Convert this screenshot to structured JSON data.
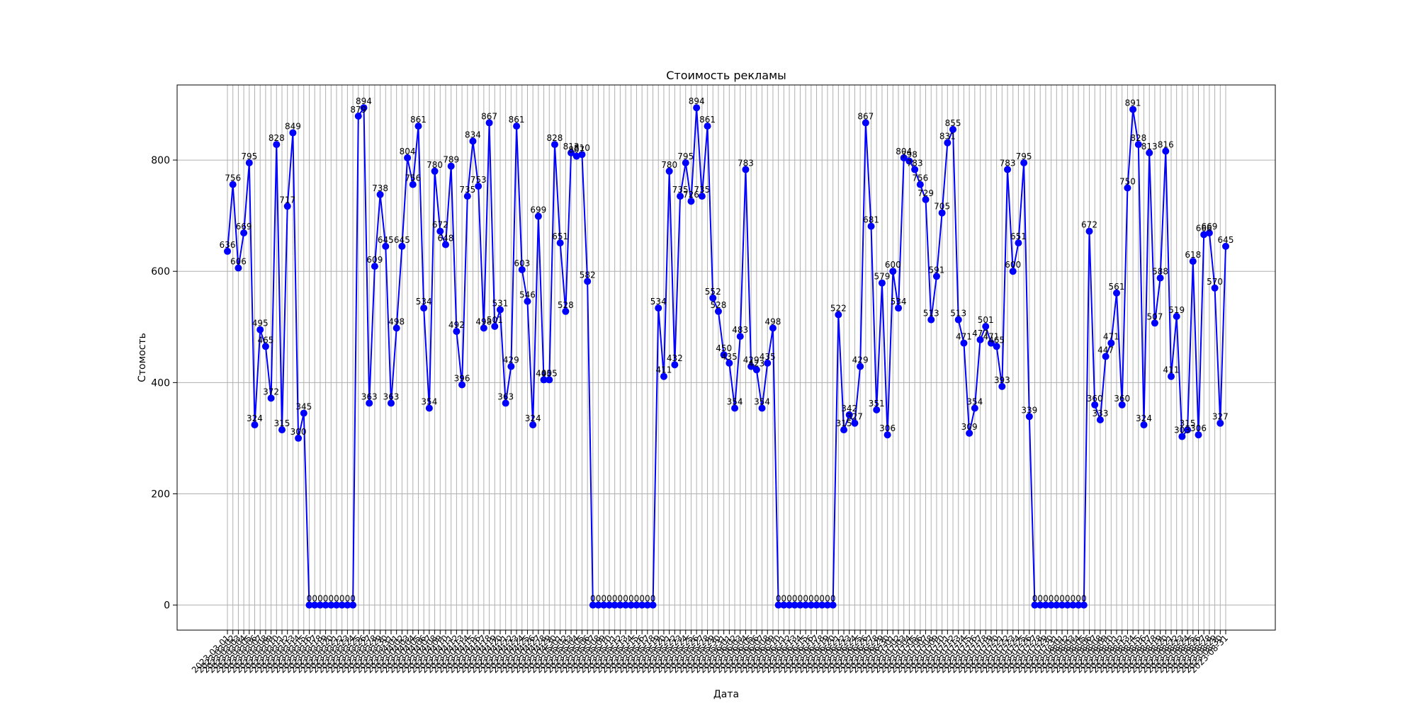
{
  "chart_data": {
    "type": "line",
    "title": "Стоимость рекламы",
    "xlabel": "Дата",
    "ylabel": "Стомость",
    "ylim": [
      -45,
      935
    ],
    "yticks": [
      0,
      200,
      400,
      600,
      800
    ],
    "grid": true,
    "legend": "none",
    "colors": {
      "line": "#0000ff",
      "marker": "#0000ff",
      "grid": "#b0b0b0",
      "text": "#000000"
    },
    "series": [
      {
        "name": "Стоимость",
        "values": [
          636,
          756,
          606,
          669,
          795,
          324,
          495,
          465,
          372,
          828,
          315,
          717,
          849,
          300,
          345,
          0,
          0,
          0,
          0,
          0,
          0,
          0,
          0,
          0,
          879,
          894,
          363,
          609,
          738,
          645,
          363,
          498,
          645,
          804,
          756,
          861,
          534,
          354,
          780,
          672,
          648,
          789,
          492,
          396,
          735,
          834,
          753,
          498,
          867,
          501,
          531,
          363,
          429,
          861,
          603,
          546,
          324,
          699,
          405,
          405,
          828,
          651,
          528,
          813,
          807,
          810,
          582,
          0,
          0,
          0,
          0,
          0,
          0,
          0,
          0,
          0,
          0,
          0,
          0,
          534,
          411,
          780,
          432,
          735,
          795,
          726,
          894,
          735,
          861,
          552,
          528,
          450,
          435,
          354,
          483,
          783,
          429,
          423,
          354,
          435,
          498,
          0,
          0,
          0,
          0,
          0,
          0,
          0,
          0,
          0,
          0,
          0,
          522,
          315,
          342,
          327,
          429,
          867,
          681,
          351,
          579,
          306,
          600,
          534,
          804,
          798,
          783,
          756,
          729,
          513,
          591,
          705,
          831,
          855,
          513,
          471,
          309,
          354,
          477,
          501,
          471,
          465,
          393,
          783,
          600,
          651,
          795,
          339,
          0,
          0,
          0,
          0,
          0,
          0,
          0,
          0,
          0,
          0,
          672,
          360,
          333,
          447,
          471,
          561,
          360,
          750,
          891,
          828,
          324,
          813,
          507,
          588,
          816,
          411,
          519,
          303,
          315,
          618,
          306,
          666,
          669,
          570,
          327,
          645
        ]
      }
    ],
    "x_range": [
      "2023-03-01",
      "2023-08-31"
    ]
  }
}
